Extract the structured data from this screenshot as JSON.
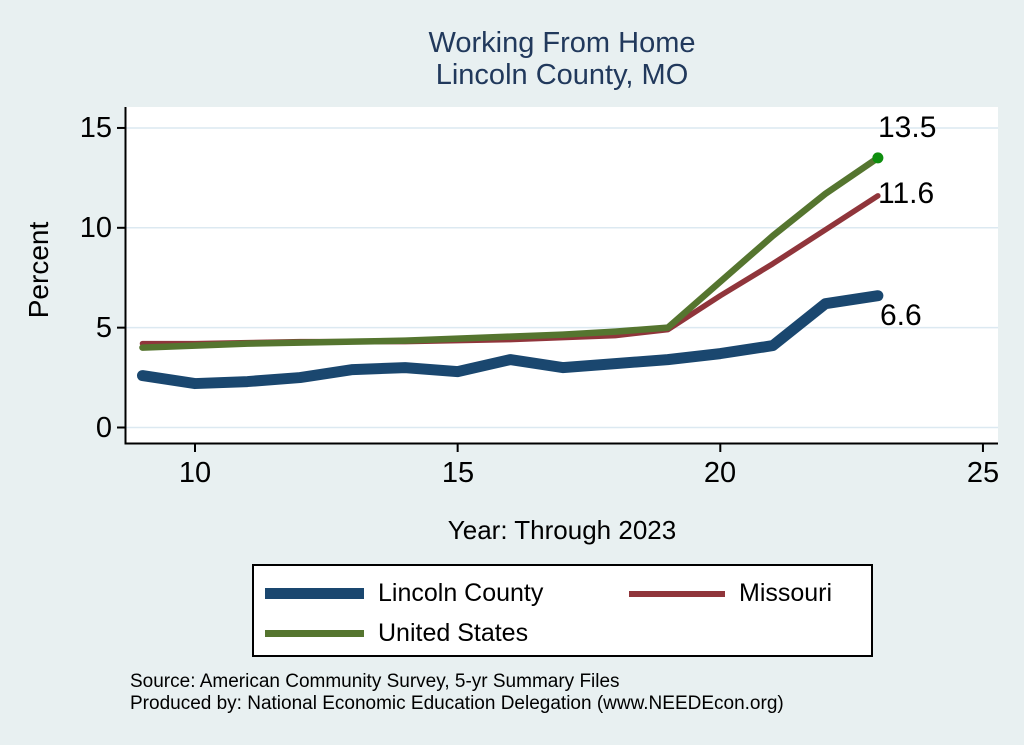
{
  "chart_data": {
    "type": "line",
    "title": "Working From Home",
    "subtitle": "Lincoln County, MO",
    "xlabel": "Year: Through 2023",
    "ylabel": "Percent",
    "x": [
      9,
      10,
      11,
      12,
      13,
      14,
      15,
      16,
      17,
      18,
      19,
      20,
      21,
      22,
      23
    ],
    "x_ticks": [
      "10",
      "15",
      "20",
      "25"
    ],
    "y_ticks": [
      "0",
      "5",
      "10",
      "15"
    ],
    "xlim": [
      8.7,
      25.3
    ],
    "ylim": [
      -0.7,
      15.8
    ],
    "grid": true,
    "grid_color": "#dce9f1",
    "legend_position": "bottom",
    "series": [
      {
        "name": "Lincoln County",
        "color": "#1a476f",
        "line_width": 11,
        "end_label": "6.6",
        "values": [
          2.6,
          2.2,
          2.3,
          2.5,
          2.9,
          3.0,
          2.8,
          3.4,
          3.0,
          3.2,
          3.4,
          3.7,
          4.1,
          6.2,
          6.6
        ]
      },
      {
        "name": "Missouri",
        "color": "#90353b",
        "line_width": 5.5,
        "end_label": "11.6",
        "values": [
          4.2,
          4.2,
          4.25,
          4.3,
          4.3,
          4.3,
          4.35,
          4.4,
          4.5,
          4.6,
          4.9,
          6.6,
          8.2,
          9.9,
          11.6
        ]
      },
      {
        "name": "United States",
        "color": "#55752f",
        "line_width": 6.5,
        "end_label": "13.5",
        "end_marker_color": "#0e8e0e",
        "values": [
          4.0,
          4.1,
          4.2,
          4.25,
          4.3,
          4.35,
          4.45,
          4.55,
          4.65,
          4.8,
          5.0,
          7.3,
          9.6,
          11.7,
          13.5
        ]
      }
    ]
  },
  "colors": {
    "page_background": "#e8f0f1",
    "plot_background": "#ffffff",
    "title_text": "#21395c",
    "axis_line": "#000000"
  },
  "source": {
    "line1": "Source: American Community Survey, 5-yr Summary Files",
    "line2": "Produced by: National Economic Education Delegation (www.NEEDEcon.org)"
  }
}
